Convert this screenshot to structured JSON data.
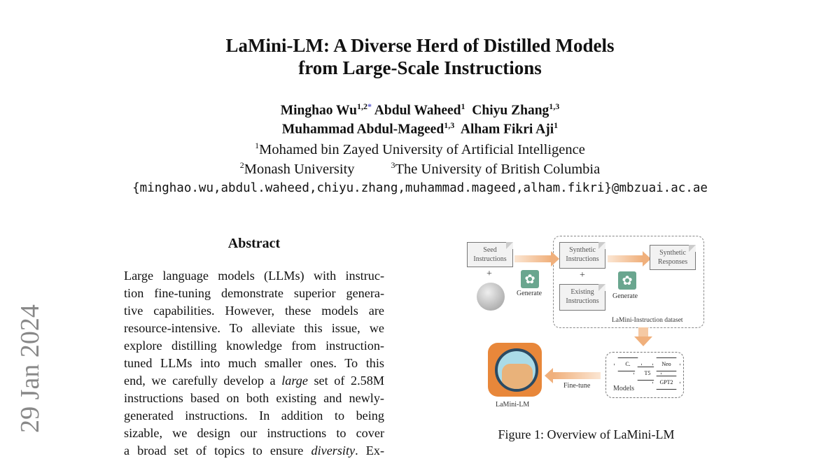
{
  "header": {
    "title_lines": [
      "LaMini-LM: A Diverse Herd of Distilled Models",
      "from Large-Scale Instructions"
    ],
    "authors_line1": [
      {
        "name": "Minghao Wu",
        "sup": "1,2",
        "mark": "*"
      },
      {
        "name": "Abdul Waheed",
        "sup": "1"
      },
      {
        "name": "Chiyu Zhang",
        "sup": "1,3"
      }
    ],
    "authors_line2": [
      {
        "name": "Muhammad Abdul-Mageed",
        "sup": "1,3"
      },
      {
        "name": "Alham Fikri Aji",
        "sup": "1"
      }
    ],
    "affiliations": [
      {
        "sup": "1",
        "name": "Mohamed bin Zayed University of Artificial Intelligence"
      },
      {
        "sup": "2",
        "name": "Monash University"
      },
      {
        "sup": "3",
        "name": "The University of British Columbia"
      }
    ],
    "emails": "{minghao.wu,abdul.waheed,chiyu.zhang,muhammad.mageed,alham.fikri}@mbzuai.ac.ae"
  },
  "arxiv_stamp": "29 Jan 2024",
  "abstract": {
    "heading": "Abstract",
    "lines": [
      "Large language models (LLMs) with instruc-",
      "tion fine-tuning demonstrate superior genera-",
      "tive capabilities. However, these models are",
      "resource-intensive. To alleviate this issue, we",
      "explore distilling knowledge from instruction-",
      "tuned LLMs into much smaller ones. To this",
      "end, we carefully develop a large set of 2.58M",
      "instructions based on both existing and newly-",
      "generated instructions. In addition to being",
      "sizable, we design our instructions to cover",
      "a broad set of topics to ensure diversity. Ex-"
    ]
  },
  "figure": {
    "seed": [
      "Seed",
      "Instructions"
    ],
    "plus": "+",
    "generate": "Generate",
    "synthetic_instructions": [
      "Synthetic",
      "Instructions"
    ],
    "existing_instructions": [
      "Existing",
      "Instructions"
    ],
    "synthetic_responses": [
      "Synthetic",
      "Responses"
    ],
    "dataset_label": "LaMini-Instruction dataset",
    "models_label": "Models",
    "models": [
      "C.",
      "T5",
      "Neo",
      "GPT2"
    ],
    "fine_tune": "Fine-tune",
    "lamini_label": "LaMini-LM",
    "caption": "Figure 1: Overview of LaMini-LM",
    "colors": {
      "arrow": "#f0b07c",
      "openai": "#6aa68f",
      "logo_bg": "#e8873a"
    }
  }
}
